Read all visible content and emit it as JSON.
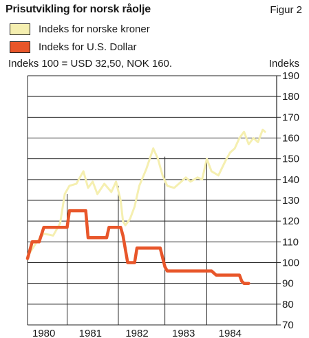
{
  "header": {
    "title": "Prisutvikling for norsk råolje",
    "figure_label": "Figur 2",
    "note": "Indeks 100 = USD 32,50, NOK 160.",
    "y_unit": "Indeks"
  },
  "colors": {
    "nok": "#f5efb0",
    "usd": "#e8562a",
    "grid": "#222222"
  },
  "chart_data": {
    "type": "line",
    "title": "Prisutvikling for norsk råolje",
    "ylabel": "Indeks",
    "ylim": [
      70,
      190
    ],
    "yticks": [
      70,
      80,
      90,
      100,
      110,
      120,
      130,
      140,
      150,
      160,
      170,
      180,
      190
    ],
    "xlim": [
      1979.65,
      1985.0
    ],
    "xtick_labels": [
      {
        "label": "1980",
        "x": 1980.0
      },
      {
        "label": "1981",
        "x": 1981.0
      },
      {
        "label": "1982",
        "x": 1982.0
      },
      {
        "label": "1983",
        "x": 1983.0
      },
      {
        "label": "1984",
        "x": 1984.0
      }
    ],
    "vertical_markers": [
      {
        "x": 1980.5,
        "y_top": 133
      },
      {
        "x": 1981.6,
        "y_top": 137
      },
      {
        "x": 1982.6,
        "y_top": 151
      },
      {
        "x": 1983.5,
        "y_top": 150
      }
    ],
    "legend": "top-left",
    "series": [
      {
        "name": "Indeks for norske kroner",
        "color_key": "nok",
        "x": [
          1979.65,
          1979.85,
          1980.0,
          1980.2,
          1980.35,
          1980.45,
          1980.55,
          1980.7,
          1980.85,
          1980.95,
          1981.05,
          1981.15,
          1981.3,
          1981.45,
          1981.55,
          1981.65,
          1981.7,
          1981.75,
          1981.85,
          1981.95,
          1982.05,
          1982.2,
          1982.35,
          1982.45,
          1982.55,
          1982.65,
          1982.8,
          1982.95,
          1983.05,
          1983.15,
          1983.3,
          1983.4,
          1983.5,
          1983.6,
          1983.75,
          1983.9,
          1984.0,
          1984.1,
          1984.2,
          1984.3,
          1984.4,
          1984.5,
          1984.6,
          1984.7,
          1984.75
        ],
        "values": [
          103,
          110,
          114,
          113,
          119,
          133,
          137,
          138,
          144,
          136,
          139,
          133,
          138,
          134,
          139,
          130,
          120,
          118,
          121,
          127,
          137,
          145,
          155,
          150,
          142,
          137,
          136,
          139,
          141,
          139,
          141,
          140,
          150,
          144,
          142,
          149,
          153,
          155,
          160,
          163,
          157,
          160,
          158,
          164,
          163
        ]
      },
      {
        "name": "Indeks for U.S. Dollar",
        "color_key": "usd",
        "x": [
          1979.65,
          1979.75,
          1979.9,
          1980.0,
          1980.5,
          1980.55,
          1980.9,
          1980.95,
          1981.35,
          1981.4,
          1981.65,
          1981.7,
          1981.8,
          1981.95,
          1982.0,
          1982.45,
          1982.5,
          1982.6,
          1982.65,
          1983.0,
          1983.6,
          1983.7,
          1984.2,
          1984.25,
          1984.3,
          1984.4
        ],
        "values": [
          102,
          110,
          110,
          117,
          117,
          125,
          125,
          112,
          112,
          117,
          117,
          113,
          100,
          100,
          107,
          107,
          107,
          98,
          96,
          96,
          96,
          94,
          94,
          91,
          90,
          90
        ]
      }
    ]
  }
}
